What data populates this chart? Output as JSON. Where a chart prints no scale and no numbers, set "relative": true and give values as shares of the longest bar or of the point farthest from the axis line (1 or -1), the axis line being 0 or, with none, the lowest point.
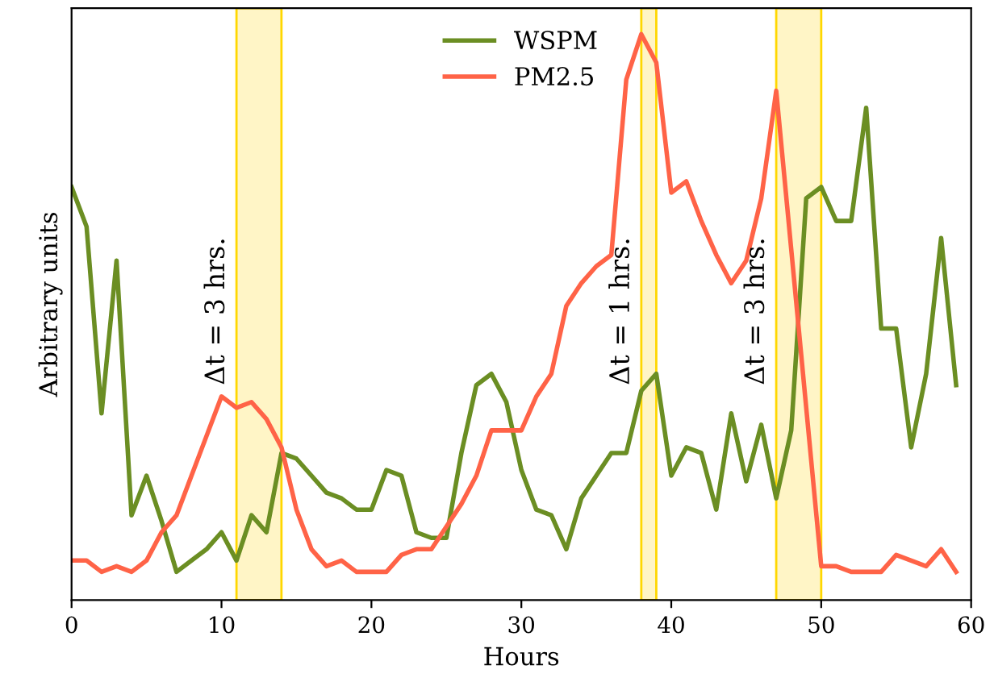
{
  "chart_data": {
    "type": "line",
    "xlabel": "Hours",
    "ylabel": "Arbitrary units",
    "relative": true,
    "x": [
      0,
      1,
      2,
      3,
      4,
      5,
      6,
      7,
      8,
      9,
      10,
      11,
      12,
      13,
      14,
      15,
      16,
      17,
      18,
      19,
      20,
      21,
      22,
      23,
      24,
      25,
      26,
      27,
      28,
      29,
      30,
      31,
      32,
      33,
      34,
      35,
      36,
      37,
      38,
      39,
      40,
      41,
      42,
      43,
      44,
      45,
      46,
      47,
      48,
      49,
      50,
      51,
      52,
      53,
      54,
      55,
      56,
      57,
      58,
      59
    ],
    "series": [
      {
        "name": "WSPM",
        "color": "#6b8e23",
        "values": [
          0.73,
          0.66,
          0.33,
          0.6,
          0.15,
          0.22,
          0.14,
          0.05,
          0.07,
          0.09,
          0.12,
          0.07,
          0.15,
          0.12,
          0.26,
          0.25,
          0.22,
          0.19,
          0.18,
          0.16,
          0.16,
          0.23,
          0.22,
          0.12,
          0.11,
          0.11,
          0.26,
          0.38,
          0.4,
          0.35,
          0.23,
          0.16,
          0.15,
          0.09,
          0.18,
          0.22,
          0.26,
          0.26,
          0.37,
          0.4,
          0.22,
          0.27,
          0.26,
          0.16,
          0.33,
          0.21,
          0.31,
          0.18,
          0.3,
          0.71,
          0.73,
          0.67,
          0.67,
          0.87,
          0.48,
          0.48,
          0.27,
          0.4,
          0.64,
          0.38
        ]
      },
      {
        "name": "PM2.5",
        "color": "#ff6347",
        "values": [
          0.07,
          0.07,
          0.05,
          0.06,
          0.05,
          0.07,
          0.12,
          0.15,
          0.22,
          0.29,
          0.36,
          0.34,
          0.35,
          0.32,
          0.27,
          0.16,
          0.09,
          0.06,
          0.07,
          0.05,
          0.05,
          0.05,
          0.08,
          0.09,
          0.09,
          0.13,
          0.17,
          0.22,
          0.3,
          0.3,
          0.3,
          0.36,
          0.4,
          0.52,
          0.56,
          0.59,
          0.61,
          0.92,
          1.0,
          0.95,
          0.72,
          0.74,
          0.67,
          0.61,
          0.56,
          0.6,
          0.71,
          0.9,
          0.62,
          0.34,
          0.06,
          0.06,
          0.05,
          0.05,
          0.05,
          0.08,
          0.07,
          0.06,
          0.09,
          0.05
        ]
      }
    ],
    "xlim": [
      0,
      60
    ],
    "xticks": [
      0,
      10,
      20,
      30,
      40,
      50,
      60
    ],
    "bands": [
      {
        "axis": "x",
        "from": 11,
        "to": 14,
        "color": "#fff5c6"
      },
      {
        "axis": "x",
        "from": 38,
        "to": 39,
        "color": "#fff5c6"
      },
      {
        "axis": "x",
        "from": 47,
        "to": 50,
        "color": "#fff5c6"
      }
    ],
    "annotations": [
      {
        "text": "Δt = 3 hrs.",
        "x": 11,
        "y": 0.38
      },
      {
        "text": "Δt = 1 hrs.",
        "x": 38,
        "y": 0.38
      },
      {
        "text": "Δt = 3 hrs.",
        "x": 47,
        "y": 0.38
      }
    ],
    "legend": "top",
    "grid": false
  }
}
